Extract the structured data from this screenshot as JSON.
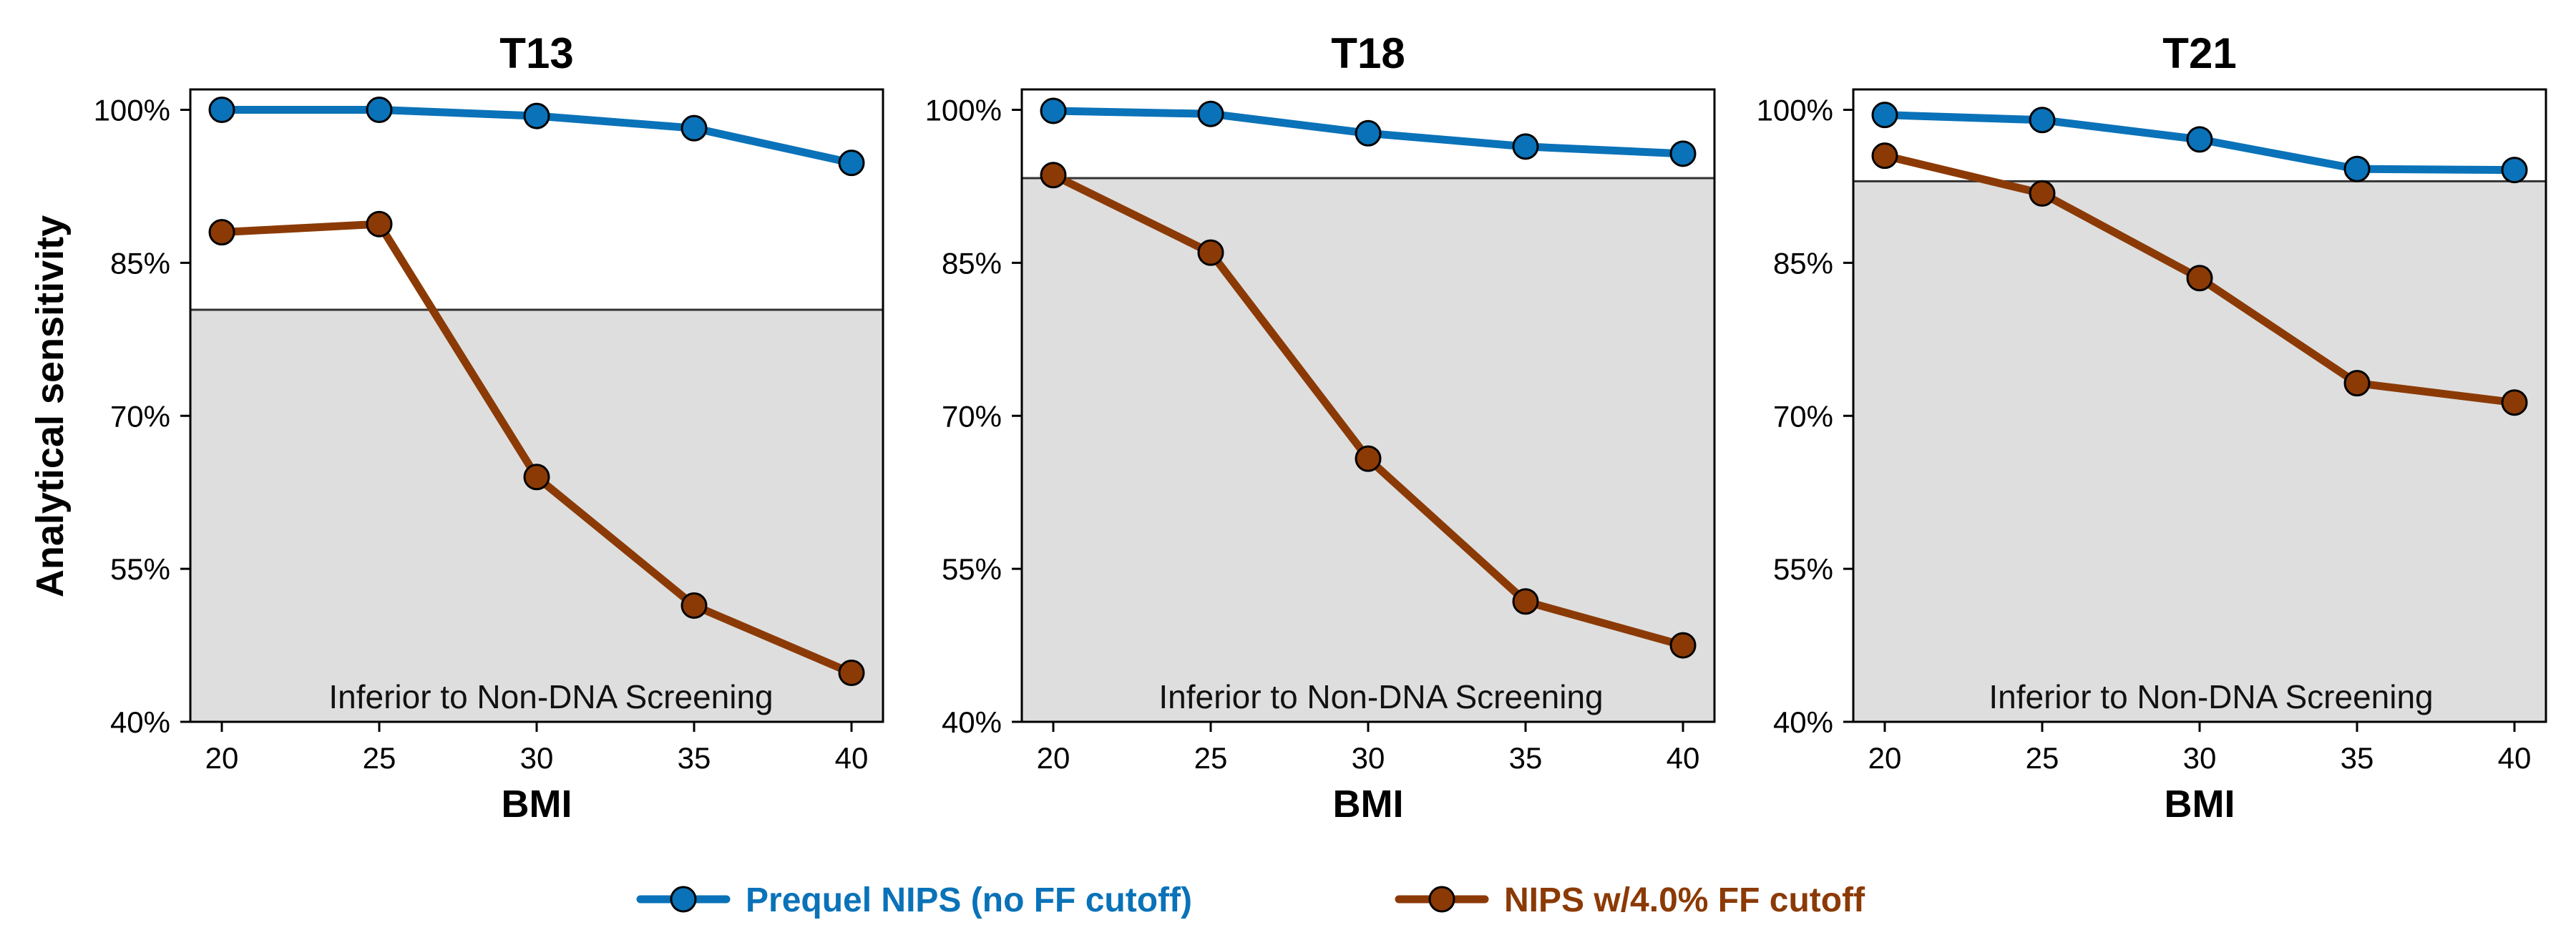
{
  "chart_data": [
    {
      "type": "line",
      "title": "T13",
      "xlabel": "BMI",
      "ylabel": "Analytical sensitivity",
      "x": [
        20,
        25,
        30,
        35,
        40
      ],
      "xlim": [
        19,
        41
      ],
      "ylim": [
        40,
        102
      ],
      "yticks": [
        "100%",
        "85%",
        "70%",
        "55%",
        "40%"
      ],
      "ytick_values": [
        100,
        85,
        70,
        55,
        40
      ],
      "xtick_labels": [
        "20",
        "25",
        "30",
        "35",
        "40"
      ],
      "threshold": 80.4,
      "shaded_region_label": "Inferior to Non-DNA Screening",
      "series": [
        {
          "name": "Prequel NIPS (no FF cutoff)",
          "values": [
            100.0,
            100.0,
            99.4,
            98.2,
            94.8
          ]
        },
        {
          "name": "NIPS w/4.0% FF cutoff",
          "values": [
            88.0,
            88.8,
            64.0,
            51.4,
            44.8
          ]
        }
      ]
    },
    {
      "type": "line",
      "title": "T18",
      "xlabel": "BMI",
      "ylabel": "",
      "x": [
        20,
        25,
        30,
        35,
        40
      ],
      "xlim": [
        19,
        41
      ],
      "ylim": [
        40,
        102
      ],
      "yticks": [
        "100%",
        "85%",
        "70%",
        "55%",
        "40%"
      ],
      "ytick_values": [
        100,
        85,
        70,
        55,
        40
      ],
      "xtick_labels": [
        "20",
        "25",
        "30",
        "35",
        "40"
      ],
      "threshold": 93.3,
      "shaded_region_label": "Inferior to Non-DNA Screening",
      "series": [
        {
          "name": "Prequel NIPS (no FF cutoff)",
          "values": [
            99.9,
            99.6,
            97.7,
            96.4,
            95.7
          ]
        },
        {
          "name": "NIPS w/4.0% FF cutoff",
          "values": [
            93.6,
            86.0,
            65.8,
            51.8,
            47.5
          ]
        }
      ]
    },
    {
      "type": "line",
      "title": "T21",
      "xlabel": "BMI",
      "ylabel": "",
      "x": [
        20,
        25,
        30,
        35,
        40
      ],
      "xlim": [
        19,
        41
      ],
      "ylim": [
        40,
        102
      ],
      "yticks": [
        "100%",
        "85%",
        "70%",
        "55%",
        "40%"
      ],
      "ytick_values": [
        100,
        85,
        70,
        55,
        40
      ],
      "xtick_labels": [
        "20",
        "25",
        "30",
        "35",
        "40"
      ],
      "threshold": 93.0,
      "shaded_region_label": "Inferior to Non-DNA Screening",
      "series": [
        {
          "name": "Prequel NIPS (no FF cutoff)",
          "values": [
            99.5,
            99.0,
            97.1,
            94.2,
            94.1
          ]
        },
        {
          "name": "NIPS w/4.0% FF cutoff",
          "values": [
            95.5,
            91.8,
            83.5,
            73.2,
            71.3
          ]
        }
      ]
    }
  ],
  "legend": {
    "placement": "bottom-center",
    "items": [
      {
        "label": "Prequel NIPS (no FF cutoff)",
        "color": "#0a72b8"
      },
      {
        "label": "NIPS w/4.0% FF cutoff",
        "color": "#8b3a06"
      }
    ]
  },
  "colors": {
    "prequel": "#0a72b8",
    "nips": "#8b3a06",
    "shade": "#dedede",
    "threshold": "#333333"
  }
}
